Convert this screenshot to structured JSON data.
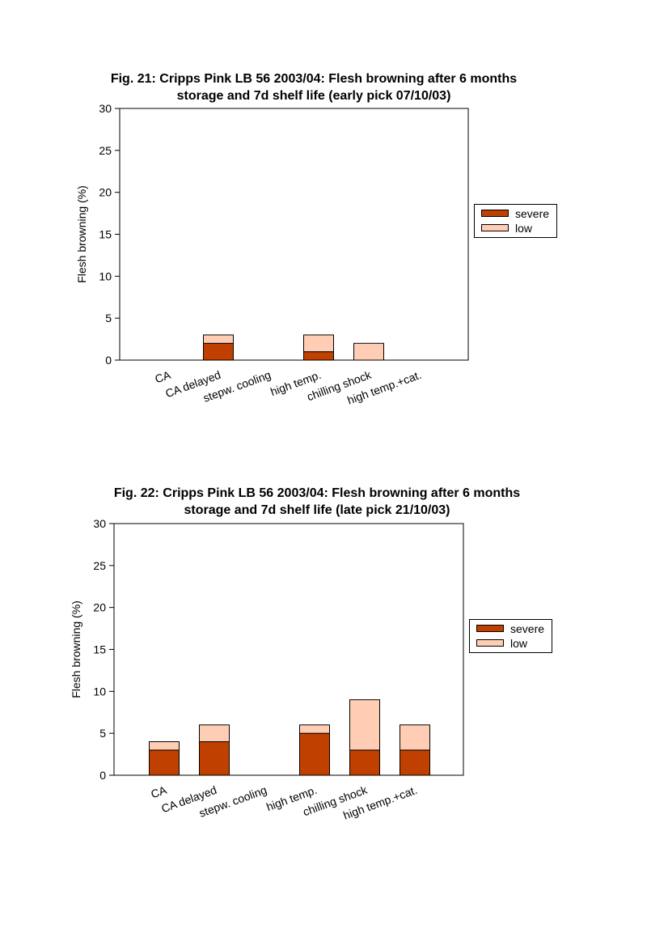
{
  "chart_data": [
    {
      "type": "bar",
      "stacked": true,
      "title": [
        "Fig. 21: Cripps Pink LB 56 2003/04: Flesh browning after 6 months",
        "storage and 7d shelf life (early pick 07/10/03)"
      ],
      "xlabel": "",
      "ylabel": "Flesh browning (%)",
      "ylim": [
        0,
        30
      ],
      "yticks": [
        0,
        5,
        10,
        15,
        20,
        25,
        30
      ],
      "categories": [
        "CA",
        "CA delayed",
        "stepw. cooling",
        "high temp.",
        "chilling shock",
        "high temp.+cat."
      ],
      "series": [
        {
          "name": "severe",
          "color": "#c04000",
          "values": [
            0,
            2,
            0,
            1,
            0,
            0
          ]
        },
        {
          "name": "low",
          "color": "#ffcdb4",
          "values": [
            0,
            1,
            0,
            2,
            2,
            0
          ]
        }
      ],
      "legend": "right",
      "grid": false
    },
    {
      "type": "bar",
      "stacked": true,
      "title": [
        "Fig. 22: Cripps Pink LB 56 2003/04: Flesh browning after 6 months",
        "storage and 7d shelf life  (late pick 21/10/03)"
      ],
      "xlabel": "",
      "ylabel": "Flesh browning (%)",
      "ylim": [
        0,
        30
      ],
      "yticks": [
        0,
        5,
        10,
        15,
        20,
        25,
        30
      ],
      "categories": [
        "CA",
        "CA delayed",
        "stepw. cooling",
        "high temp.",
        "chilling shock",
        "high temp.+cat."
      ],
      "series": [
        {
          "name": "severe",
          "color": "#c04000",
          "values": [
            3,
            4,
            0,
            5,
            3,
            3
          ]
        },
        {
          "name": "low",
          "color": "#ffcdb4",
          "values": [
            1,
            2,
            0,
            1,
            6,
            3
          ]
        }
      ],
      "legend": "right",
      "grid": false
    }
  ]
}
